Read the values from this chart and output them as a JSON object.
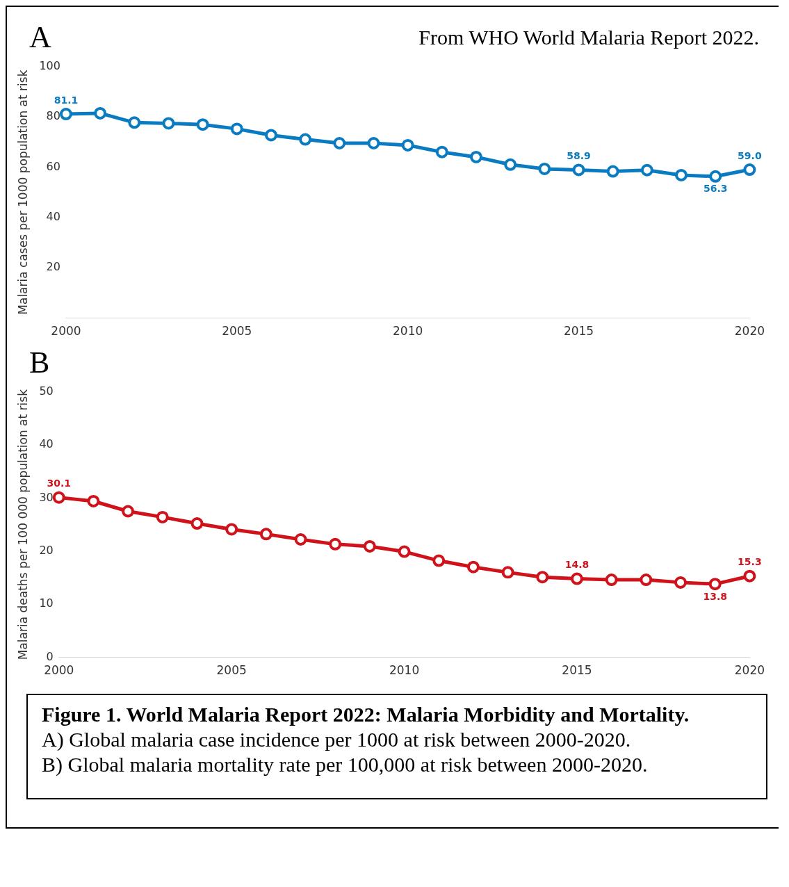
{
  "chart_data": [
    {
      "type": "line",
      "title": "A",
      "ylabel": "Malaria cases per 1000 population at risk",
      "annotations": [
        "From WHO World Malaria Report 2022."
      ],
      "x": [
        2000,
        2001,
        2002,
        2003,
        2004,
        2005,
        2006,
        2007,
        2008,
        2009,
        2010,
        2011,
        2012,
        2013,
        2014,
        2015,
        2016,
        2017,
        2018,
        2019,
        2020
      ],
      "series": [
        {
          "color": "#0a7bc1",
          "values": [
            81.1,
            81.4,
            77.7,
            77.4,
            76.9,
            75.2,
            72.7,
            71.0,
            69.5,
            69.5,
            68.7,
            66.0,
            64.0,
            61.0,
            59.3,
            58.9,
            58.3,
            58.8,
            56.8,
            56.3,
            59.0
          ],
          "value_labels": [
            "81.1",
            null,
            null,
            null,
            null,
            null,
            null,
            null,
            null,
            null,
            null,
            null,
            null,
            null,
            null,
            "58.9",
            null,
            null,
            null,
            "56.3",
            "59.0"
          ]
        }
      ],
      "xlim": [
        2000,
        2020
      ],
      "xticks": [
        2000,
        2005,
        2010,
        2015,
        2020
      ],
      "ylim": [
        0,
        100
      ],
      "yticks": [
        20,
        40,
        60,
        80,
        100
      ],
      "grid": false,
      "legend": false,
      "marker": "circle",
      "line_style": "solid"
    },
    {
      "type": "line",
      "title": "B",
      "ylabel": "Malaria deaths per 100 000 population at risk",
      "annotations": [
        "Figure 1. World Malaria Report 2022: Malaria Morbidity and Mortality.",
        "A) Global malaria case incidence per 1000 at risk between 2000-2020.",
        "B) Global malaria mortality rate per 100,000 at risk between 2000-2020."
      ],
      "x": [
        2000,
        2001,
        2002,
        2003,
        2004,
        2005,
        2006,
        2007,
        2008,
        2009,
        2010,
        2011,
        2012,
        2013,
        2014,
        2015,
        2016,
        2017,
        2018,
        2019,
        2020
      ],
      "series": [
        {
          "color": "#d0121b",
          "values": [
            30.1,
            29.4,
            27.5,
            26.4,
            25.2,
            24.1,
            23.2,
            22.2,
            21.3,
            20.9,
            19.9,
            18.2,
            17.0,
            16.0,
            15.1,
            14.8,
            14.6,
            14.6,
            14.1,
            13.8,
            15.3
          ],
          "value_labels": [
            "30.1",
            null,
            null,
            null,
            null,
            null,
            null,
            null,
            null,
            null,
            null,
            null,
            null,
            null,
            null,
            "14.8",
            null,
            null,
            null,
            "13.8",
            "15.3"
          ]
        }
      ],
      "xlim": [
        2000,
        2020
      ],
      "xticks": [
        2000,
        2005,
        2010,
        2015,
        2020
      ],
      "ylim": [
        0,
        50
      ],
      "yticks": [
        0,
        10,
        20,
        30,
        40,
        50
      ],
      "grid": false,
      "legend": false,
      "marker": "circle",
      "line_style": "solid"
    }
  ]
}
